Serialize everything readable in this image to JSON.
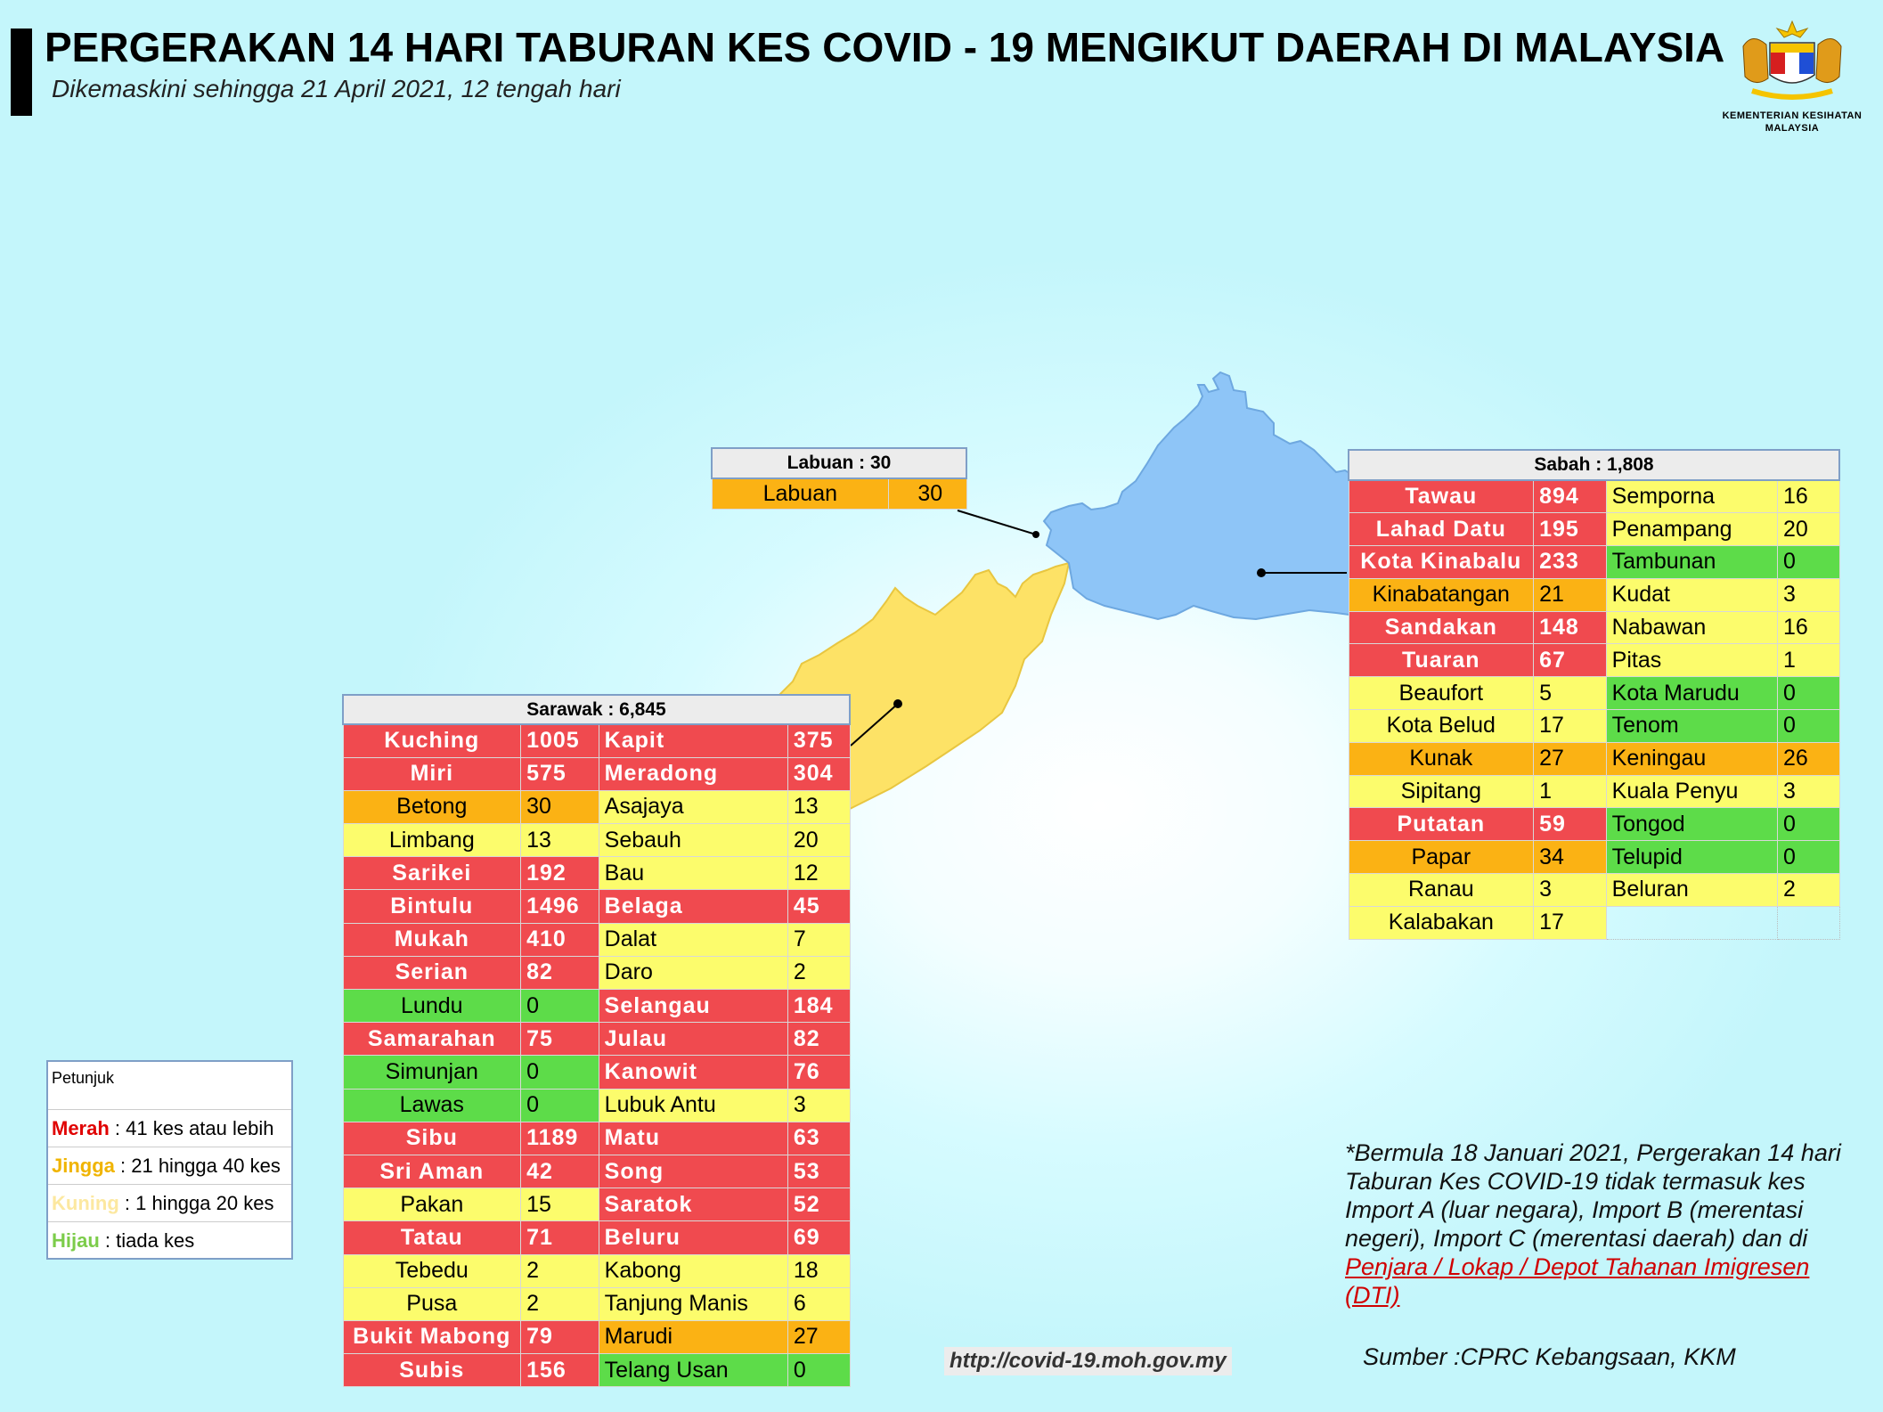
{
  "header": {
    "title": "PERGERAKAN 14 HARI TABURAN KES COVID - 19 MENGIKUT DAERAH DI MALAYSIA",
    "subtitle": "Dikemaskini sehingga 21 April 2021, 12 tengah hari",
    "ministry_line1": "KEMENTERIAN KESIHATAN",
    "ministry_line2": "MALAYSIA"
  },
  "colors": {
    "red": "#f04a4f",
    "orange": "#fbb214",
    "yellow": "#fcfc6c",
    "green": "#5ddc49",
    "sabah_fill": "#8ec5f7",
    "sarawak_fill": "#fde266"
  },
  "labuan": {
    "title": "Labuan : 30",
    "rows": [
      {
        "name": "Labuan",
        "value": "30",
        "level": "orange"
      }
    ]
  },
  "sabah": {
    "title": "Sabah : 1,808",
    "left": [
      {
        "name": "Tawau",
        "value": "894",
        "level": "red"
      },
      {
        "name": "Lahad Datu",
        "value": "195",
        "level": "red"
      },
      {
        "name": "Kota Kinabalu",
        "value": "233",
        "level": "red"
      },
      {
        "name": "Kinabatangan",
        "value": "21",
        "level": "orange"
      },
      {
        "name": "Sandakan",
        "value": "148",
        "level": "red"
      },
      {
        "name": "Tuaran",
        "value": "67",
        "level": "red"
      },
      {
        "name": "Beaufort",
        "value": "5",
        "level": "yellow"
      },
      {
        "name": "Kota Belud",
        "value": "17",
        "level": "yellow"
      },
      {
        "name": "Kunak",
        "value": "27",
        "level": "orange"
      },
      {
        "name": "Sipitang",
        "value": "1",
        "level": "yellow"
      },
      {
        "name": "Putatan",
        "value": "59",
        "level": "red"
      },
      {
        "name": "Papar",
        "value": "34",
        "level": "orange"
      },
      {
        "name": "Ranau",
        "value": "3",
        "level": "yellow"
      },
      {
        "name": "Kalabakan",
        "value": "17",
        "level": "yellow"
      }
    ],
    "right": [
      {
        "name": "Semporna",
        "value": "16",
        "level": "yellow"
      },
      {
        "name": "Penampang",
        "value": "20",
        "level": "yellow"
      },
      {
        "name": "Tambunan",
        "value": "0",
        "level": "green"
      },
      {
        "name": "Kudat",
        "value": "3",
        "level": "yellow"
      },
      {
        "name": "Nabawan",
        "value": "16",
        "level": "yellow"
      },
      {
        "name": "Pitas",
        "value": "1",
        "level": "yellow"
      },
      {
        "name": "Kota Marudu",
        "value": "0",
        "level": "green"
      },
      {
        "name": "Tenom",
        "value": "0",
        "level": "green"
      },
      {
        "name": "Keningau",
        "value": "26",
        "level": "orange"
      },
      {
        "name": "Kuala Penyu",
        "value": "3",
        "level": "yellow"
      },
      {
        "name": "Tongod",
        "value": "0",
        "level": "green"
      },
      {
        "name": "Telupid",
        "value": "0",
        "level": "green"
      },
      {
        "name": "Beluran",
        "value": "2",
        "level": "yellow"
      }
    ]
  },
  "sarawak": {
    "title": "Sarawak : 6,845",
    "left": [
      {
        "name": "Kuching",
        "value": "1005",
        "level": "red"
      },
      {
        "name": "Miri",
        "value": "575",
        "level": "red"
      },
      {
        "name": "Betong",
        "value": "30",
        "level": "orange"
      },
      {
        "name": "Limbang",
        "value": "13",
        "level": "yellow"
      },
      {
        "name": "Sarikei",
        "value": "192",
        "level": "red"
      },
      {
        "name": "Bintulu",
        "value": "1496",
        "level": "red"
      },
      {
        "name": "Mukah",
        "value": "410",
        "level": "red"
      },
      {
        "name": "Serian",
        "value": "82",
        "level": "red"
      },
      {
        "name": "Lundu",
        "value": "0",
        "level": "green"
      },
      {
        "name": "Samarahan",
        "value": "75",
        "level": "red"
      },
      {
        "name": "Simunjan",
        "value": "0",
        "level": "green"
      },
      {
        "name": "Lawas",
        "value": "0",
        "level": "green"
      },
      {
        "name": "Sibu",
        "value": "1189",
        "level": "red"
      },
      {
        "name": "Sri Aman",
        "value": "42",
        "level": "red"
      },
      {
        "name": "Pakan",
        "value": "15",
        "level": "yellow"
      },
      {
        "name": "Tatau",
        "value": "71",
        "level": "red"
      },
      {
        "name": "Tebedu",
        "value": "2",
        "level": "yellow"
      },
      {
        "name": "Pusa",
        "value": "2",
        "level": "yellow"
      },
      {
        "name": "Bukit Mabong",
        "value": "79",
        "level": "red"
      },
      {
        "name": "Subis",
        "value": "156",
        "level": "red"
      }
    ],
    "right": [
      {
        "name": "Kapit",
        "value": "375",
        "level": "red"
      },
      {
        "name": "Meradong",
        "value": "304",
        "level": "red"
      },
      {
        "name": "Asajaya",
        "value": "13",
        "level": "yellow"
      },
      {
        "name": "Sebauh",
        "value": "20",
        "level": "yellow"
      },
      {
        "name": "Bau",
        "value": "12",
        "level": "yellow"
      },
      {
        "name": "Belaga",
        "value": "45",
        "level": "red"
      },
      {
        "name": "Dalat",
        "value": "7",
        "level": "yellow"
      },
      {
        "name": "Daro",
        "value": "2",
        "level": "yellow"
      },
      {
        "name": "Selangau",
        "value": "184",
        "level": "red"
      },
      {
        "name": "Julau",
        "value": "82",
        "level": "red"
      },
      {
        "name": "Kanowit",
        "value": "76",
        "level": "red"
      },
      {
        "name": "Lubuk Antu",
        "value": "3",
        "level": "yellow"
      },
      {
        "name": "Matu",
        "value": "63",
        "level": "red"
      },
      {
        "name": "Song",
        "value": "53",
        "level": "red"
      },
      {
        "name": "Saratok",
        "value": "52",
        "level": "red"
      },
      {
        "name": "Beluru",
        "value": "69",
        "level": "red"
      },
      {
        "name": "Kabong",
        "value": "18",
        "level": "yellow"
      },
      {
        "name": "Tanjung Manis",
        "value": "6",
        "level": "yellow"
      },
      {
        "name": "Marudi",
        "value": "27",
        "level": "orange"
      },
      {
        "name": "Telang Usan",
        "value": "0",
        "level": "green"
      }
    ]
  },
  "legend": {
    "title": "Petunjuk",
    "items": [
      {
        "key": "Merah",
        "text": " : 41 kes atau lebih",
        "color": "#e00000"
      },
      {
        "key": "Jingga",
        "text": " : 21 hingga 40 kes",
        "color": "#f0b400"
      },
      {
        "key": "Kuning",
        "text": " : 1 hingga 20 kes",
        "color": "#fce8a0"
      },
      {
        "key": "Hijau",
        "text": " : tiada kes",
        "color": "#7ccc4a"
      }
    ]
  },
  "note": {
    "text": "*Bermula 18 Januari 2021, Pergerakan 14 hari Taburan Kes COVID-19 tidak termasuk kes Import A (luar negara), Import B (merentasi negeri), Import C (merentasi daerah) dan di ",
    "link": "Penjara / Lokap / Depot Tahanan Imigresen (DTI)"
  },
  "footer": {
    "url": "http://covid-19.moh.gov.my",
    "source": "Sumber :CPRC Kebangsaan,  KKM"
  }
}
